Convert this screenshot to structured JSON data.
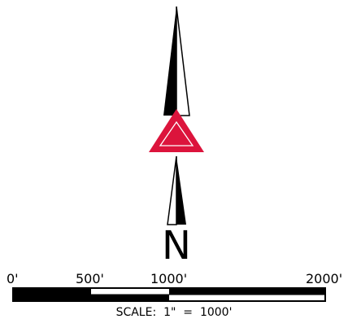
{
  "north_arrow": {
    "letter": "N",
    "triangle_color": "#dc143c",
    "ink_color": "#000000"
  },
  "scale_bar": {
    "ticks": [
      "0'",
      "500'",
      "1000'",
      "2000'"
    ],
    "caption": "SCALE:  1\"  =  1000'"
  }
}
